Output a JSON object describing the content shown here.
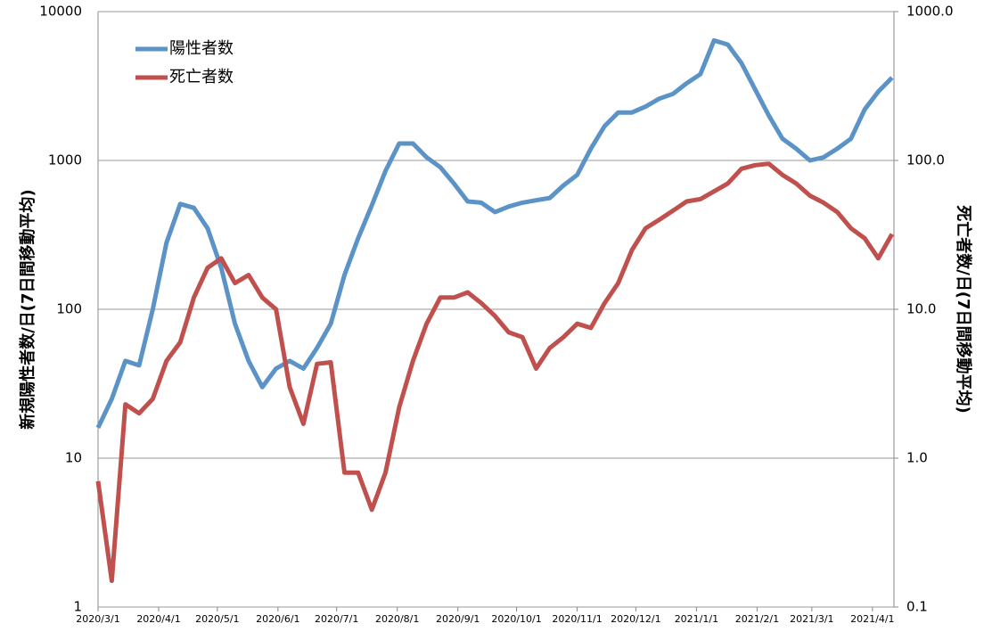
{
  "chart_data": {
    "type": "line",
    "xlabel": null,
    "ylabel": "新規陽性者数/日(7日間移動平均)",
    "y2label": "死亡者数/日(7日間移動平均)",
    "x": [
      "2020/3/1",
      "2020/3/8",
      "2020/3/15",
      "2020/3/22",
      "2020/3/29",
      "2020/4/5",
      "2020/4/12",
      "2020/4/19",
      "2020/4/26",
      "2020/5/3",
      "2020/5/10",
      "2020/5/17",
      "2020/5/24",
      "2020/5/31",
      "2020/6/7",
      "2020/6/14",
      "2020/6/21",
      "2020/6/28",
      "2020/7/5",
      "2020/7/12",
      "2020/7/19",
      "2020/7/26",
      "2020/8/2",
      "2020/8/9",
      "2020/8/16",
      "2020/8/23",
      "2020/8/30",
      "2020/9/6",
      "2020/9/13",
      "2020/9/20",
      "2020/9/27",
      "2020/10/4",
      "2020/10/11",
      "2020/10/18",
      "2020/10/25",
      "2020/11/1",
      "2020/11/8",
      "2020/11/15",
      "2020/11/22",
      "2020/11/29",
      "2020/12/6",
      "2020/12/13",
      "2020/12/20",
      "2020/12/27",
      "2021/1/3",
      "2021/1/10",
      "2021/1/17",
      "2021/1/24",
      "2021/1/31",
      "2021/2/7",
      "2021/2/14",
      "2021/2/21",
      "2021/2/28",
      "2021/3/7",
      "2021/3/14",
      "2021/3/21",
      "2021/3/28",
      "2021/4/4",
      "2021/4/11"
    ],
    "xlim": [
      "2020/3/1",
      "2021/4/12"
    ],
    "xticks": [
      "2020/3/1",
      "2020/4/1",
      "2020/5/1",
      "2020/6/1",
      "2020/7/1",
      "2020/8/1",
      "2020/9/1",
      "2020/10/1",
      "2020/11/1",
      "2020/12/1",
      "2021/1/1",
      "2021/2/1",
      "2021/3/1",
      "2021/4/1"
    ],
    "ylim": [
      1,
      10000
    ],
    "yticks": [
      1,
      10,
      100,
      1000,
      10000
    ],
    "yscale": "log",
    "y2lim": [
      0.1,
      1000
    ],
    "y2ticks": [
      0.1,
      {
        "value": 1,
        "label": "1.0"
      },
      {
        "value": 10,
        "label": "10.0"
      },
      {
        "value": 100,
        "label": "100.0"
      },
      {
        "value": 1000,
        "label": "1000.0"
      }
    ],
    "y2scale": "log",
    "grid": true,
    "legend": "upper left",
    "series": [
      {
        "name": "陽性者数",
        "color": "#5b93c7",
        "values": [
          16,
          25,
          45,
          42,
          100,
          280,
          510,
          480,
          350,
          190,
          80,
          45,
          30,
          40,
          45,
          40,
          55,
          80,
          170,
          300,
          500,
          850,
          1300,
          1300,
          1050,
          900,
          700,
          530,
          520,
          450,
          490,
          520,
          540,
          560,
          680,
          800,
          1200,
          1700,
          2100,
          2100,
          2300,
          2600,
          2800,
          3300,
          3800,
          6400,
          6000,
          4500,
          3000,
          2000,
          1400,
          1200,
          1000,
          1050,
          1200,
          1400,
          2200,
          2900,
          3600
        ]
      },
      {
        "name": "死亡者数",
        "color": "#c0504d",
        "axis": "y2",
        "values": [
          0.7,
          0.15,
          2.3,
          2.0,
          2.5,
          4.5,
          6,
          12,
          19,
          22,
          15,
          17,
          12,
          10,
          3,
          1.7,
          4.3,
          4.4,
          0.8,
          0.8,
          0.45,
          0.8,
          2.2,
          4.5,
          8,
          12,
          12,
          13,
          11,
          9,
          7,
          6.5,
          4,
          5.5,
          6.5,
          8,
          7.5,
          11,
          15,
          25,
          35,
          40,
          46,
          53,
          55,
          62,
          70,
          88,
          93,
          95,
          80,
          70,
          58,
          52,
          45,
          35,
          30,
          22,
          32
        ]
      }
    ]
  }
}
